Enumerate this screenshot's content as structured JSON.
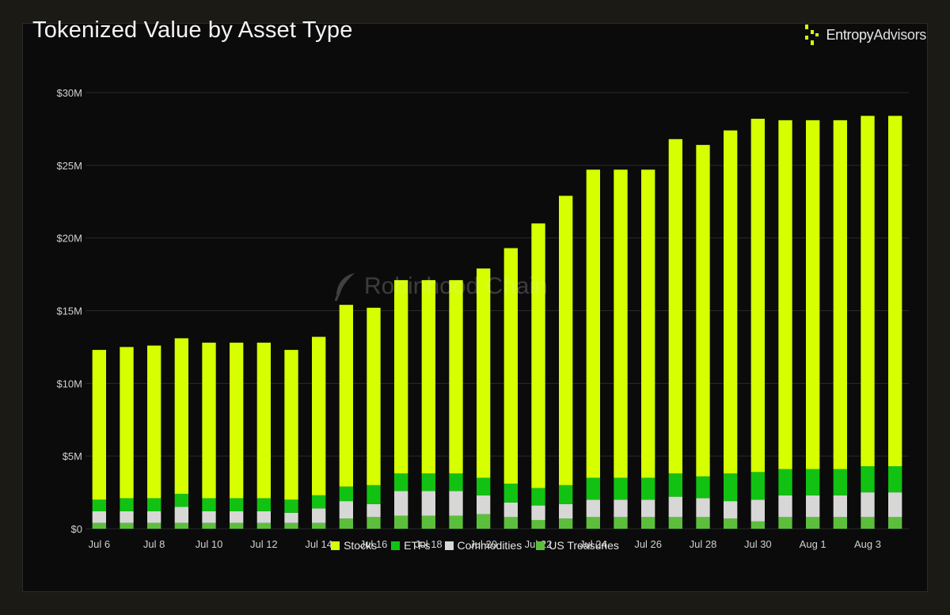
{
  "title": "Tokenized Value by Asset Type",
  "brand": {
    "name_part1": "Entropy",
    "name_part2": "Advisors",
    "logo_icon": "entropy-logo-icon"
  },
  "watermark": {
    "text": "Robinhood Chain",
    "icon": "feather-icon"
  },
  "colors": {
    "background": "#0b0b0b",
    "grid": "#2a2a2a",
    "axis_text": "#d0d0d0",
    "Stocks": "#d6ff00",
    "ETFs": "#12c212",
    "Commodities": "#d7d7d5",
    "US Treasuries": "#5cbf3c"
  },
  "chart_data": {
    "type": "bar",
    "stacked": true,
    "categories": [
      "Jul 6",
      "Jul 7",
      "Jul 8",
      "Jul 9",
      "Jul 10",
      "Jul 11",
      "Jul 12",
      "Jul 13",
      "Jul 14",
      "Jul 15",
      "Jul 16",
      "Jul 17",
      "Jul 18",
      "Jul 19",
      "Jul 20",
      "Jul 21",
      "Jul 22",
      "Jul 23",
      "Jul 24",
      "Jul 25",
      "Jul 26",
      "Jul 27",
      "Jul 28",
      "Jul 29",
      "Jul 30",
      "Jul 31",
      "Aug 1",
      "Aug 2",
      "Aug 3",
      "Aug 4"
    ],
    "x_tick_labels": [
      "Jul 6",
      "",
      "Jul 8",
      "",
      "Jul 10",
      "",
      "Jul 12",
      "",
      "Jul 14",
      "",
      "Jul 16",
      "",
      "Jul 18",
      "",
      "Jul 20",
      "",
      "Jul 22",
      "",
      "Jul 24",
      "",
      "Jul 26",
      "",
      "Jul 28",
      "",
      "Jul 30",
      "",
      "Aug 1",
      "",
      "Aug 3",
      ""
    ],
    "y_tick_labels": [
      "$0",
      "$5M",
      "$10M",
      "$15M",
      "$20M",
      "$25M",
      "$30M"
    ],
    "y_ticks": [
      0,
      5,
      10,
      15,
      20,
      25,
      30
    ],
    "ylim": [
      0,
      30
    ],
    "y_unit": "$M",
    "grid": true,
    "legend_position": "bottom-center",
    "series": [
      {
        "name": "US Treasuries",
        "values": [
          0.4,
          0.4,
          0.4,
          0.4,
          0.4,
          0.4,
          0.4,
          0.4,
          0.4,
          0.7,
          0.8,
          0.9,
          0.9,
          0.9,
          1.0,
          0.8,
          0.6,
          0.7,
          0.8,
          0.8,
          0.8,
          0.8,
          0.8,
          0.7,
          0.5,
          0.8,
          0.8,
          0.8,
          0.8,
          0.8
        ]
      },
      {
        "name": "Commodities",
        "values": [
          0.8,
          0.8,
          0.8,
          1.1,
          0.8,
          0.8,
          0.8,
          0.7,
          1.0,
          1.2,
          0.9,
          1.7,
          1.7,
          1.7,
          1.3,
          1.0,
          1.0,
          1.0,
          1.2,
          1.2,
          1.2,
          1.4,
          1.3,
          1.2,
          1.5,
          1.5,
          1.5,
          1.5,
          1.7,
          1.7
        ]
      },
      {
        "name": "ETFs",
        "values": [
          0.8,
          0.9,
          0.9,
          0.9,
          0.9,
          0.9,
          0.9,
          0.9,
          0.9,
          1.0,
          1.3,
          1.2,
          1.2,
          1.2,
          1.2,
          1.3,
          1.2,
          1.3,
          1.5,
          1.5,
          1.5,
          1.6,
          1.5,
          1.9,
          1.9,
          1.8,
          1.8,
          1.8,
          1.8,
          1.8
        ]
      },
      {
        "name": "Stocks",
        "values": [
          10.3,
          10.4,
          10.5,
          10.7,
          10.7,
          10.7,
          10.7,
          10.3,
          10.9,
          12.5,
          12.2,
          13.3,
          13.3,
          13.3,
          14.4,
          16.2,
          18.2,
          19.9,
          21.2,
          21.2,
          21.2,
          23.0,
          22.8,
          23.6,
          24.3,
          24.0,
          24.0,
          24.0,
          24.1,
          24.1
        ]
      }
    ],
    "totals": [
      12.3,
      12.5,
      12.6,
      13.1,
      12.8,
      12.8,
      12.8,
      12.3,
      13.2,
      15.4,
      15.2,
      17.1,
      17.1,
      17.1,
      17.9,
      19.3,
      21.0,
      22.9,
      24.7,
      24.7,
      24.7,
      26.8,
      26.4,
      27.4,
      28.2,
      28.1,
      28.1,
      28.1,
      28.4,
      28.4
    ],
    "legend": [
      "Stocks",
      "ETFs",
      "Commodities",
      "US Treasuries"
    ]
  }
}
